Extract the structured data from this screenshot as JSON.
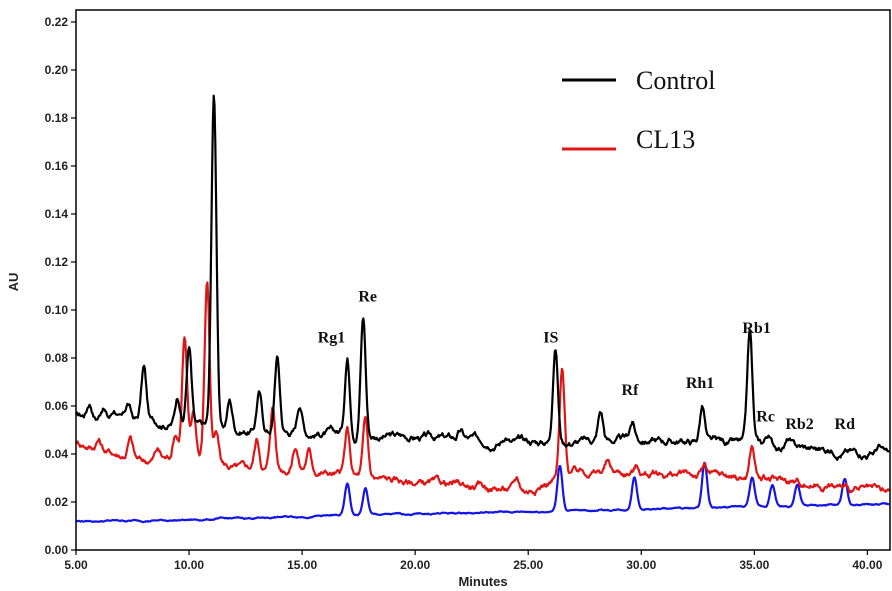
{
  "chart_data": {
    "type": "line",
    "xlabel": "Minutes",
    "ylabel": "AU",
    "xlim": [
      5.0,
      41.0
    ],
    "ylim": [
      0.0,
      0.225
    ],
    "x_ticks": [
      5,
      10,
      15,
      20,
      25,
      30,
      35,
      40
    ],
    "x_tick_labels": [
      "5.00",
      "10.00",
      "15.00",
      "20.00",
      "25.00",
      "30.00",
      "35.00",
      "40.00"
    ],
    "y_ticks": [
      0.0,
      0.02,
      0.04,
      0.06,
      0.08,
      0.1,
      0.12,
      0.14,
      0.16,
      0.18,
      0.2,
      0.22
    ],
    "y_tick_labels": [
      "0.00",
      "0.02",
      "0.04",
      "0.06",
      "0.08",
      "0.10",
      "0.12",
      "0.14",
      "0.16",
      "0.18",
      "0.20",
      "0.22"
    ],
    "grid": false,
    "legend": {
      "placement": "top-right"
    },
    "series": [
      {
        "name": "Control",
        "color": "#000000",
        "baseline": [
          [
            5,
            0.056
          ],
          [
            8,
            0.054
          ],
          [
            12,
            0.05
          ],
          [
            16,
            0.049
          ],
          [
            20,
            0.047
          ],
          [
            25,
            0.045
          ],
          [
            30,
            0.046
          ],
          [
            35,
            0.044
          ],
          [
            41,
            0.04
          ]
        ],
        "peaks": [
          [
            5.6,
            0.006
          ],
          [
            6.2,
            0.005
          ],
          [
            6.7,
            0.004
          ],
          [
            7.3,
            0.006
          ],
          [
            8.0,
            0.022
          ],
          [
            9.5,
            0.012
          ],
          [
            10.0,
            0.033
          ],
          [
            11.1,
            0.138
          ],
          [
            11.8,
            0.012
          ],
          [
            13.1,
            0.016
          ],
          [
            13.9,
            0.031
          ],
          [
            14.9,
            0.012
          ],
          [
            17.0,
            0.032
          ],
          [
            17.7,
            0.05
          ],
          [
            22.0,
            0.003
          ],
          [
            24.0,
            0.003
          ],
          [
            26.2,
            0.04
          ],
          [
            28.2,
            0.012
          ],
          [
            29.6,
            0.007
          ],
          [
            32.7,
            0.015
          ],
          [
            34.8,
            0.046
          ],
          [
            35.6,
            0.004
          ],
          [
            36.5,
            0.003
          ],
          [
            40.5,
            0.003
          ]
        ]
      },
      {
        "name": "CL13",
        "color": "#e01515",
        "baseline": [
          [
            5,
            0.045
          ],
          [
            8,
            0.037
          ],
          [
            10,
            0.04
          ],
          [
            12,
            0.034
          ],
          [
            15,
            0.034
          ],
          [
            17,
            0.031
          ],
          [
            20,
            0.028
          ],
          [
            25,
            0.025
          ],
          [
            27,
            0.033
          ],
          [
            30,
            0.032
          ],
          [
            33,
            0.031
          ],
          [
            35,
            0.03
          ],
          [
            38,
            0.027
          ],
          [
            41,
            0.023
          ]
        ],
        "peaks": [
          [
            6.0,
            0.004
          ],
          [
            7.4,
            0.008
          ],
          [
            8.6,
            0.004
          ],
          [
            9.4,
            0.01
          ],
          [
            9.8,
            0.049
          ],
          [
            10.2,
            0.018
          ],
          [
            10.8,
            0.075
          ],
          [
            11.2,
            0.012
          ],
          [
            13.0,
            0.012
          ],
          [
            13.7,
            0.026
          ],
          [
            14.7,
            0.01
          ],
          [
            15.3,
            0.008
          ],
          [
            17.0,
            0.018
          ],
          [
            17.8,
            0.023
          ],
          [
            24.5,
            0.004
          ],
          [
            26.5,
            0.043
          ],
          [
            28.5,
            0.004
          ],
          [
            29.8,
            0.003
          ],
          [
            32.8,
            0.004
          ],
          [
            34.9,
            0.013
          ]
        ]
      },
      {
        "name": "",
        "color": "#1414e6",
        "baseline": [
          [
            5,
            0.012
          ],
          [
            10,
            0.0125
          ],
          [
            15,
            0.014
          ],
          [
            20,
            0.015
          ],
          [
            25,
            0.016
          ],
          [
            30,
            0.017
          ],
          [
            35,
            0.018
          ],
          [
            41,
            0.019
          ]
        ],
        "peaks": [
          [
            17.0,
            0.013
          ],
          [
            17.8,
            0.011
          ],
          [
            26.4,
            0.019
          ],
          [
            29.7,
            0.014
          ],
          [
            32.8,
            0.019
          ],
          [
            34.9,
            0.012
          ],
          [
            35.8,
            0.009
          ],
          [
            36.9,
            0.009
          ],
          [
            39.0,
            0.011
          ]
        ]
      }
    ],
    "annotations": [
      {
        "text": "Rg1",
        "x": 16.3,
        "y": 0.0865
      },
      {
        "text": "Re",
        "x": 17.9,
        "y": 0.1035
      },
      {
        "text": "IS",
        "x": 26.0,
        "y": 0.0865
      },
      {
        "text": "Rf",
        "x": 29.5,
        "y": 0.0645
      },
      {
        "text": "Rh1",
        "x": 32.6,
        "y": 0.0675
      },
      {
        "text": "Rb1",
        "x": 35.1,
        "y": 0.0905
      },
      {
        "text": "Rc",
        "x": 35.5,
        "y": 0.0535
      },
      {
        "text": "Rb2",
        "x": 37.0,
        "y": 0.0505
      },
      {
        "text": "Rd",
        "x": 39.0,
        "y": 0.0505
      }
    ]
  }
}
